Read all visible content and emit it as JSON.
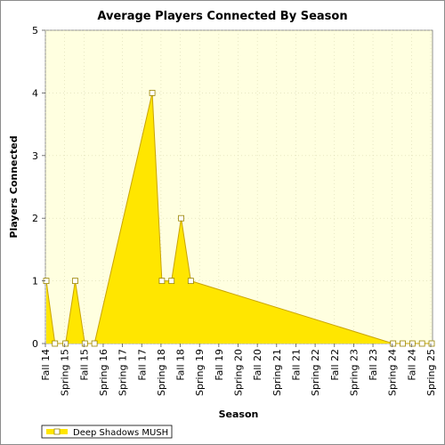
{
  "chart_data": {
    "type": "area",
    "title": "Average Players Connected By Season",
    "xlabel": "Season",
    "ylabel": "Players Connected",
    "ylim": [
      0,
      5
    ],
    "yticks": [
      "0",
      "1",
      "2",
      "3",
      "4",
      "5"
    ],
    "categories": [
      "Fall 14",
      "Spring 15",
      "Fall 15",
      "Spring 16",
      "Spring 17",
      "Fall 17",
      "Spring 18",
      "Fall 18",
      "Spring 19",
      "Fall 19",
      "Spring 20",
      "Fall 20",
      "Spring 21",
      "Fall 21",
      "Spring 22",
      "Fall 22",
      "Spring 23",
      "Fall 23",
      "Spring 24",
      "Fall 24",
      "Spring 25"
    ],
    "grid": true,
    "legend_position": "bottom-left",
    "series": [
      {
        "name": "Deep Shadows MUSH",
        "color": "#ffe600",
        "points": [
          {
            "x": "Fall 14",
            "y": 1
          },
          {
            "x": "Fall 14-15a",
            "y": 0
          },
          {
            "x": "Spring 15",
            "y": 0
          },
          {
            "x": "Spring 15b",
            "y": 1
          },
          {
            "x": "Fall 15",
            "y": 0
          },
          {
            "x": "Fall 15b",
            "y": 0
          },
          {
            "x": "Spring 17",
            "y": 4
          },
          {
            "x": "Fall 17",
            "y": 1
          },
          {
            "x": "Fall 17b",
            "y": 1
          },
          {
            "x": "Spring 18",
            "y": 2
          },
          {
            "x": "Fall 18",
            "y": 1
          },
          {
            "x": "Spring 24",
            "y": 0
          },
          {
            "x": "Fall 24",
            "y": 0
          },
          {
            "x": "Fall 24b",
            "y": 0
          },
          {
            "x": "Spring 25",
            "y": 0
          },
          {
            "x": "Spring 25b",
            "y": 0
          }
        ]
      }
    ]
  }
}
